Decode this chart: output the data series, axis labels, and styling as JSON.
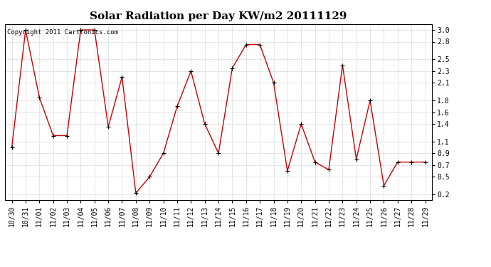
{
  "title": "Solar Radiation per Day KW/m2 20111129",
  "copyright_text": "Copyright 2011 Cartronics.com",
  "x_labels": [
    "10/30",
    "10/31",
    "11/01",
    "11/02",
    "11/03",
    "11/04",
    "11/05",
    "11/06",
    "11/07",
    "11/08",
    "11/09",
    "11/10",
    "11/11",
    "11/12",
    "11/13",
    "11/14",
    "11/15",
    "11/16",
    "11/17",
    "11/18",
    "11/19",
    "11/20",
    "11/21",
    "11/22",
    "11/23",
    "11/24",
    "11/25",
    "11/26",
    "11/27",
    "11/28",
    "11/29"
  ],
  "y_values": [
    1.0,
    3.0,
    1.85,
    1.2,
    1.2,
    3.0,
    3.0,
    1.35,
    2.2,
    0.22,
    0.5,
    0.9,
    1.7,
    2.3,
    1.4,
    0.9,
    2.35,
    2.75,
    2.75,
    2.1,
    0.6,
    1.4,
    0.75,
    0.62,
    2.4,
    0.8,
    1.8,
    0.35,
    0.75,
    0.75,
    0.75
  ],
  "line_color": "#cc0000",
  "marker": "+",
  "marker_size": 5,
  "bg_color": "#ffffff",
  "plot_bg_color": "#ffffff",
  "grid_color": "#cccccc",
  "ylim": [
    0.1,
    3.1
  ],
  "yticks": [
    0.2,
    0.5,
    0.7,
    0.9,
    1.1,
    1.4,
    1.6,
    1.8,
    2.1,
    2.3,
    2.5,
    2.8,
    3.0
  ],
  "title_fontsize": 11,
  "tick_fontsize": 7,
  "copyright_fontsize": 6.5
}
